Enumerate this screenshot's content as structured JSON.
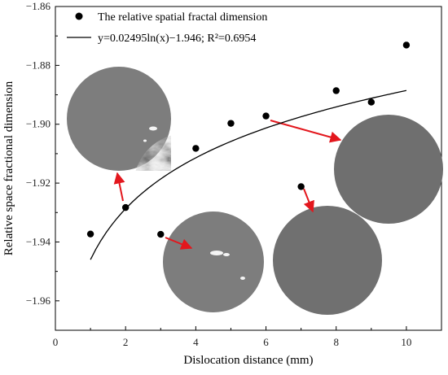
{
  "chart_data": {
    "type": "scatter",
    "xlabel": "Dislocation distance (mm)",
    "ylabel": "Relative space fractional dimension",
    "xlim": [
      0,
      11
    ],
    "ylim": [
      -1.97,
      -1.86
    ],
    "xticks": [
      0,
      2,
      4,
      6,
      8,
      10
    ],
    "yticks": [
      -1.86,
      -1.88,
      -1.9,
      -1.92,
      -1.94,
      -1.96
    ],
    "ytick_labels": [
      "−1.86",
      "−1.88",
      "−1.90",
      "−1.92",
      "−1.94",
      "−1.96"
    ],
    "grid": false,
    "legend_position": "top-left",
    "series": [
      {
        "name": "The relative spatial fractal dimension",
        "kind": "points",
        "color": "#000000",
        "x": [
          1,
          2,
          3,
          4,
          5,
          6,
          7,
          8,
          9,
          10
        ],
        "y": [
          -1.9373,
          -1.9283,
          -1.9374,
          -1.9082,
          -1.8997,
          -1.8972,
          -1.9212,
          -1.8886,
          -1.8925,
          -1.8731
        ]
      },
      {
        "name": "y=0.02495ln(x)−1.946; R²=0.6954",
        "kind": "fit",
        "color": "#000000",
        "equation": {
          "a": 0.02495,
          "b": -1.946,
          "form": "ln",
          "x_range": [
            1,
            10
          ]
        }
      }
    ],
    "annotations": [
      {
        "name": "micrograph-1",
        "point_index": 1
      },
      {
        "name": "micrograph-2",
        "point_index": 2
      },
      {
        "name": "micrograph-3",
        "point_index": 5
      },
      {
        "name": "micrograph-4",
        "point_index": 6
      }
    ],
    "colors": {
      "arrow": "#e3171d",
      "disk_base": "#7d7d7d"
    }
  }
}
